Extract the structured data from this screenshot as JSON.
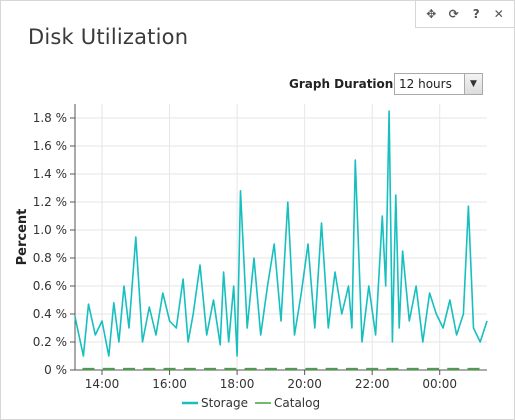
{
  "widget": {
    "title": "Disk Utilization",
    "toolbar": [
      {
        "name": "move-icon",
        "glyph": "✥"
      },
      {
        "name": "refresh-icon",
        "glyph": "⟳"
      },
      {
        "name": "help-icon",
        "glyph": "?"
      },
      {
        "name": "close-icon",
        "glyph": "✕"
      }
    ]
  },
  "controls": {
    "duration_label": "Graph Duration:",
    "duration_value": "12 hours"
  },
  "colors": {
    "storage": "#17bfbf",
    "catalog": "#3aa93a",
    "grid": "#e6e6e6",
    "axis": "#555555"
  },
  "chart_data": {
    "type": "line",
    "ylabel": "Percent",
    "xlabel": "",
    "ylim": [
      0,
      1.9
    ],
    "yticks": [
      0,
      0.2,
      0.4,
      0.6,
      0.8,
      1.0,
      1.2,
      1.4,
      1.6,
      1.8
    ],
    "ytick_labels": [
      "0 %",
      "0.2 %",
      "0.4 %",
      "0.6 %",
      "0.8 %",
      "1.0 %",
      "1.2 %",
      "1.4 %",
      "1.6 %",
      "1.8 %"
    ],
    "xlim_hours": [
      13.2,
      25.4
    ],
    "xticks_hours": [
      14,
      16,
      18,
      20,
      22,
      24
    ],
    "xtick_labels": [
      "14:00",
      "16:00",
      "18:00",
      "20:00",
      "22:00",
      "00:00"
    ],
    "grid": true,
    "legend_position": "bottom-center",
    "series": [
      {
        "name": "Storage",
        "x": [
          13.2,
          13.45,
          13.6,
          13.8,
          14.0,
          14.2,
          14.35,
          14.5,
          14.65,
          14.8,
          15.0,
          15.2,
          15.4,
          15.6,
          15.8,
          16.0,
          16.2,
          16.4,
          16.55,
          16.7,
          16.9,
          17.1,
          17.3,
          17.5,
          17.6,
          17.75,
          17.9,
          18.0,
          18.1,
          18.3,
          18.5,
          18.7,
          18.9,
          19.1,
          19.3,
          19.5,
          19.7,
          19.9,
          20.1,
          20.3,
          20.5,
          20.7,
          20.9,
          21.1,
          21.3,
          21.4,
          21.5,
          21.7,
          21.9,
          22.1,
          22.3,
          22.4,
          22.5,
          22.6,
          22.7,
          22.8,
          22.9,
          23.1,
          23.3,
          23.5,
          23.7,
          23.9,
          24.1,
          24.3,
          24.5,
          24.7,
          24.85,
          25.0,
          25.2,
          25.4
        ],
        "values": [
          0.38,
          0.1,
          0.47,
          0.25,
          0.35,
          0.1,
          0.48,
          0.2,
          0.6,
          0.3,
          0.95,
          0.2,
          0.45,
          0.25,
          0.55,
          0.35,
          0.3,
          0.65,
          0.2,
          0.4,
          0.75,
          0.25,
          0.5,
          0.18,
          0.7,
          0.2,
          0.6,
          0.1,
          1.28,
          0.3,
          0.8,
          0.25,
          0.6,
          0.9,
          0.35,
          1.2,
          0.25,
          0.55,
          0.9,
          0.3,
          1.05,
          0.3,
          0.7,
          0.4,
          0.6,
          0.3,
          1.5,
          0.2,
          0.6,
          0.25,
          1.1,
          0.6,
          1.85,
          0.2,
          1.25,
          0.3,
          0.85,
          0.35,
          0.6,
          0.2,
          0.55,
          0.4,
          0.3,
          0.5,
          0.25,
          0.4,
          1.17,
          0.3,
          0.2,
          0.35
        ]
      },
      {
        "name": "Catalog",
        "x": [
          13.6,
          14.2,
          14.8,
          15.4,
          16.0,
          16.6,
          17.2,
          17.8,
          18.4,
          19.0,
          19.6,
          20.2,
          20.8,
          21.4,
          22.0,
          22.6,
          23.2,
          23.8,
          24.4,
          25.0
        ],
        "values": [
          0.01,
          0.01,
          0.01,
          0.01,
          0.01,
          0.01,
          0.01,
          0.01,
          0.01,
          0.01,
          0.01,
          0.01,
          0.01,
          0.01,
          0.01,
          0.01,
          0.01,
          0.01,
          0.01,
          0.01
        ]
      }
    ]
  }
}
